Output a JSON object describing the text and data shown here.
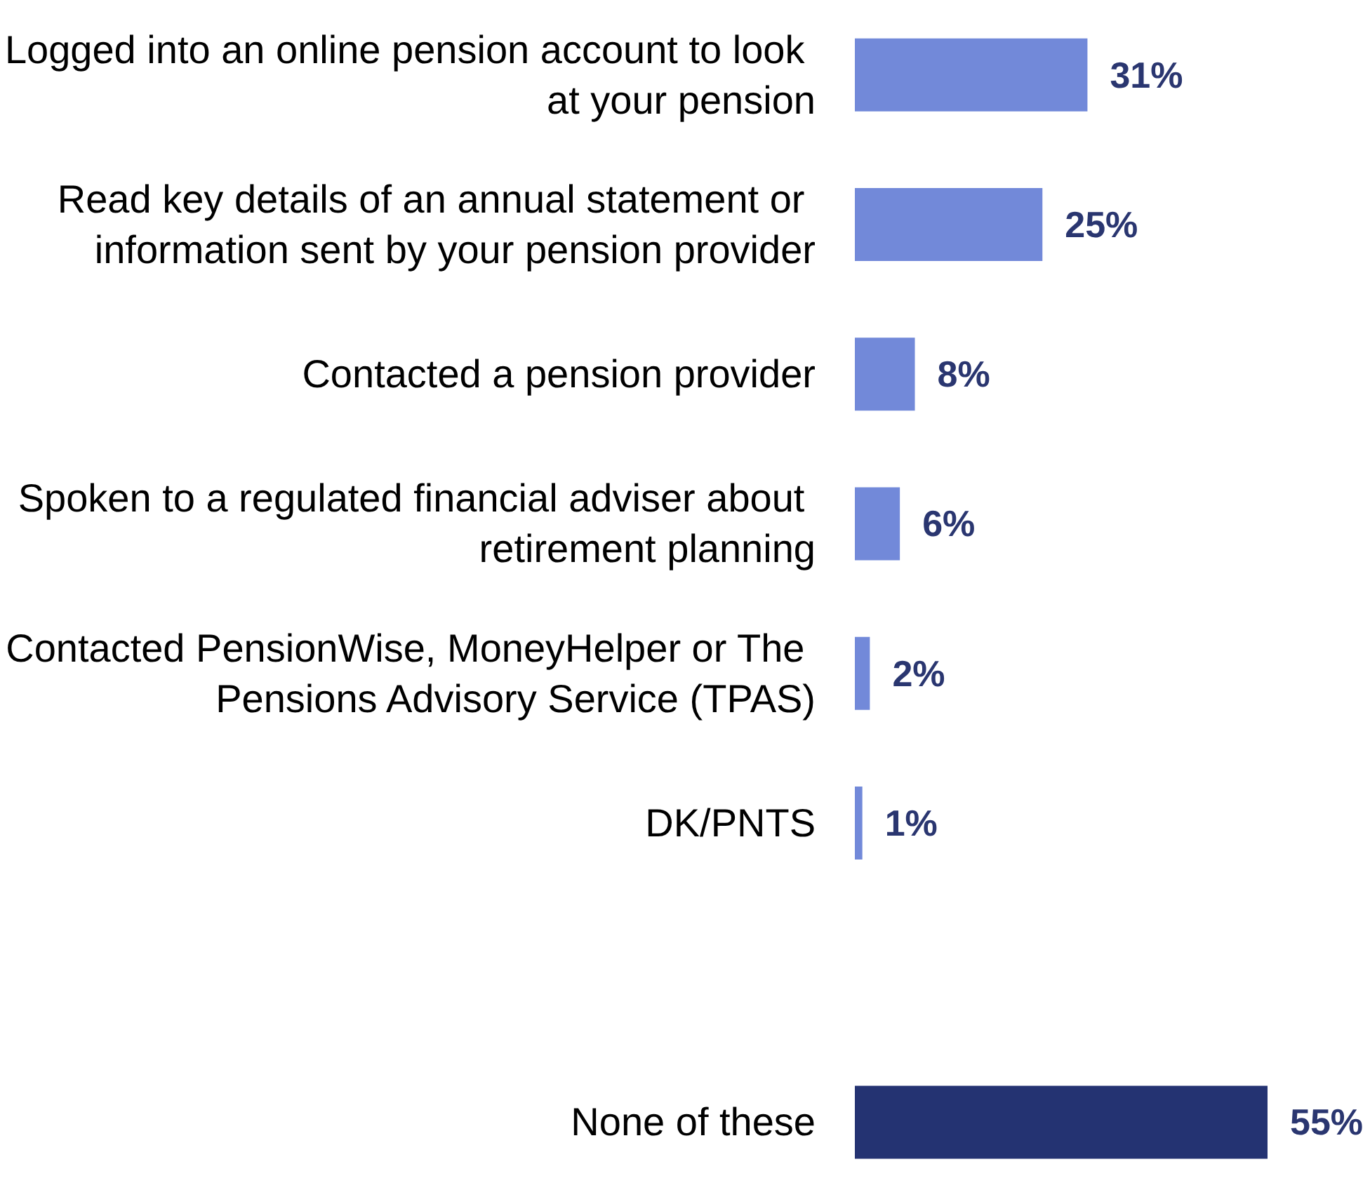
{
  "chart_data": {
    "type": "bar",
    "orientation": "horizontal",
    "categories": [
      "Logged into an online pension account to look at your pension",
      "Read key details of an annual statement or information sent by your pension provider",
      "Contacted a pension provider",
      "Spoken to a regulated financial adviser about retirement planning",
      "Contacted PensionWise, MoneyHelper or The Pensions Advisory Service (TPAS)",
      "DK/PNTS",
      null,
      "None of these"
    ],
    "values": [
      31,
      25,
      8,
      6,
      2,
      1,
      null,
      55
    ],
    "colors": [
      "#7289d9",
      "#7289d9",
      "#7289d9",
      "#7289d9",
      "#7289d9",
      "#7289d9",
      "#7289d9",
      "#243372"
    ],
    "value_labels": [
      "31%",
      "25%",
      "8%",
      "6%",
      "2%",
      "1%",
      null,
      "55%"
    ]
  }
}
